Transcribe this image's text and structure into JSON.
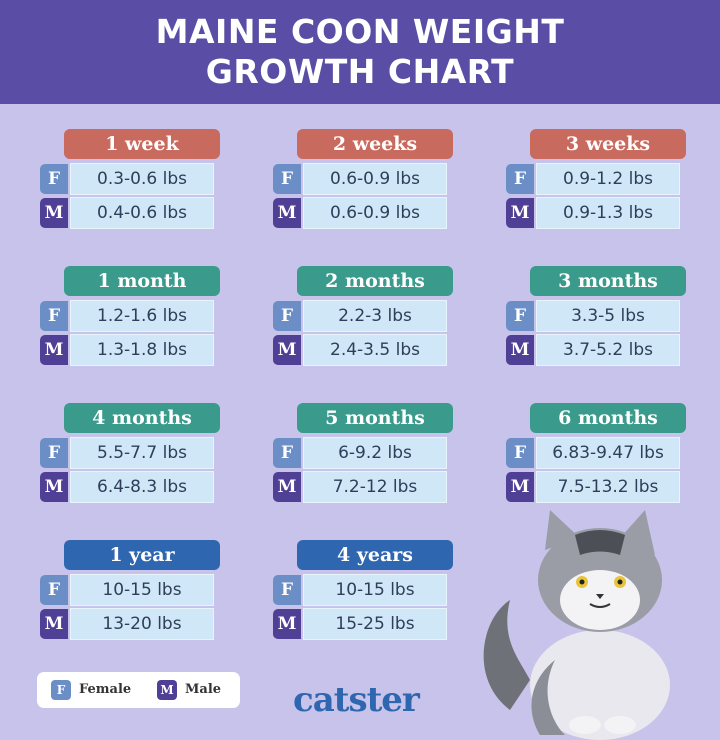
{
  "title": [
    "MAINE COON WEIGHT",
    "GROWTH CHART"
  ],
  "colors": {
    "background": "#c8c3ea",
    "title_band": "#5a4da5",
    "weeks": "#c96a5f",
    "months": "#3a9a8c",
    "years": "#2f66b0",
    "female": "#6b8ec7",
    "male": "#4f3f95",
    "value_box": "#cfe7f7"
  },
  "chart_data": {
    "type": "table",
    "columns": [
      "",
      "F",
      "M"
    ],
    "rows": [
      {
        "age": "1 week",
        "group": "weeks",
        "F": "0.3-0.6 lbs",
        "M": "0.4-0.6 lbs"
      },
      {
        "age": "2 weeks",
        "group": "weeks",
        "F": "0.6-0.9 lbs",
        "M": "0.6-0.9 lbs"
      },
      {
        "age": "3 weeks",
        "group": "weeks",
        "F": "0.9-1.2 lbs",
        "M": "0.9-1.3 lbs"
      },
      {
        "age": "1 month",
        "group": "months",
        "F": "1.2-1.6 lbs",
        "M": "1.3-1.8 lbs"
      },
      {
        "age": "2 months",
        "group": "months",
        "F": "2.2-3 lbs",
        "M": "2.4-3.5 lbs"
      },
      {
        "age": "3 months",
        "group": "months",
        "F": "3.3-5 lbs",
        "M": "3.7-5.2 lbs"
      },
      {
        "age": "4 months",
        "group": "months",
        "F": "5.5-7.7 lbs",
        "M": "6.4-8.3 lbs"
      },
      {
        "age": "5 months",
        "group": "months",
        "F": "6-9.2 lbs",
        "M": "7.2-12 lbs"
      },
      {
        "age": "6 months",
        "group": "months",
        "F": "6.83-9.47 lbs",
        "M": "7.5-13.2 lbs"
      },
      {
        "age": "1 year",
        "group": "years",
        "F": "10-15 lbs",
        "M": "13-20 lbs"
      },
      {
        "age": "4 years",
        "group": "years",
        "F": "10-15 lbs",
        "M": "15-25 lbs"
      }
    ]
  },
  "legend": [
    {
      "key": "F",
      "label": "Female"
    },
    {
      "key": "M",
      "label": "Male"
    }
  ],
  "logo": "catster"
}
